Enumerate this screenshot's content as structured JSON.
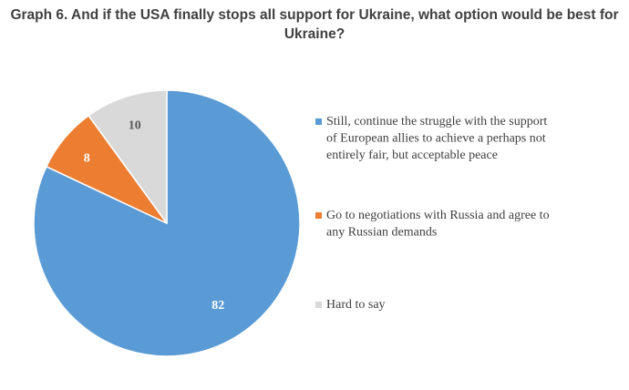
{
  "chart_data": {
    "type": "pie",
    "title_lines": [
      "Graph 6. And if the USA finally stops all support for Ukraine, what option would be best for",
      "Ukraine?"
    ],
    "slices": [
      {
        "value": 82,
        "label_lines": [
          "Still, continue the struggle with the support",
          "of European allies to achieve a perhaps not",
          "entirely fair, but acceptable peace"
        ],
        "color": "#5B9BD5",
        "label_color": "#FFFFFF"
      },
      {
        "value": 8,
        "label_lines": [
          "Go to negotiations with Russia and agree to",
          "any Russian demands"
        ],
        "color": "#ED7D31",
        "label_color": "#FFFFFF"
      },
      {
        "value": 10,
        "label_lines": [
          "Hard to say"
        ],
        "color": "#D9D9D9",
        "label_color": "#595959"
      }
    ],
    "legend_position": "right",
    "start_angle": "12 o'clock",
    "direction": "clockwise"
  }
}
